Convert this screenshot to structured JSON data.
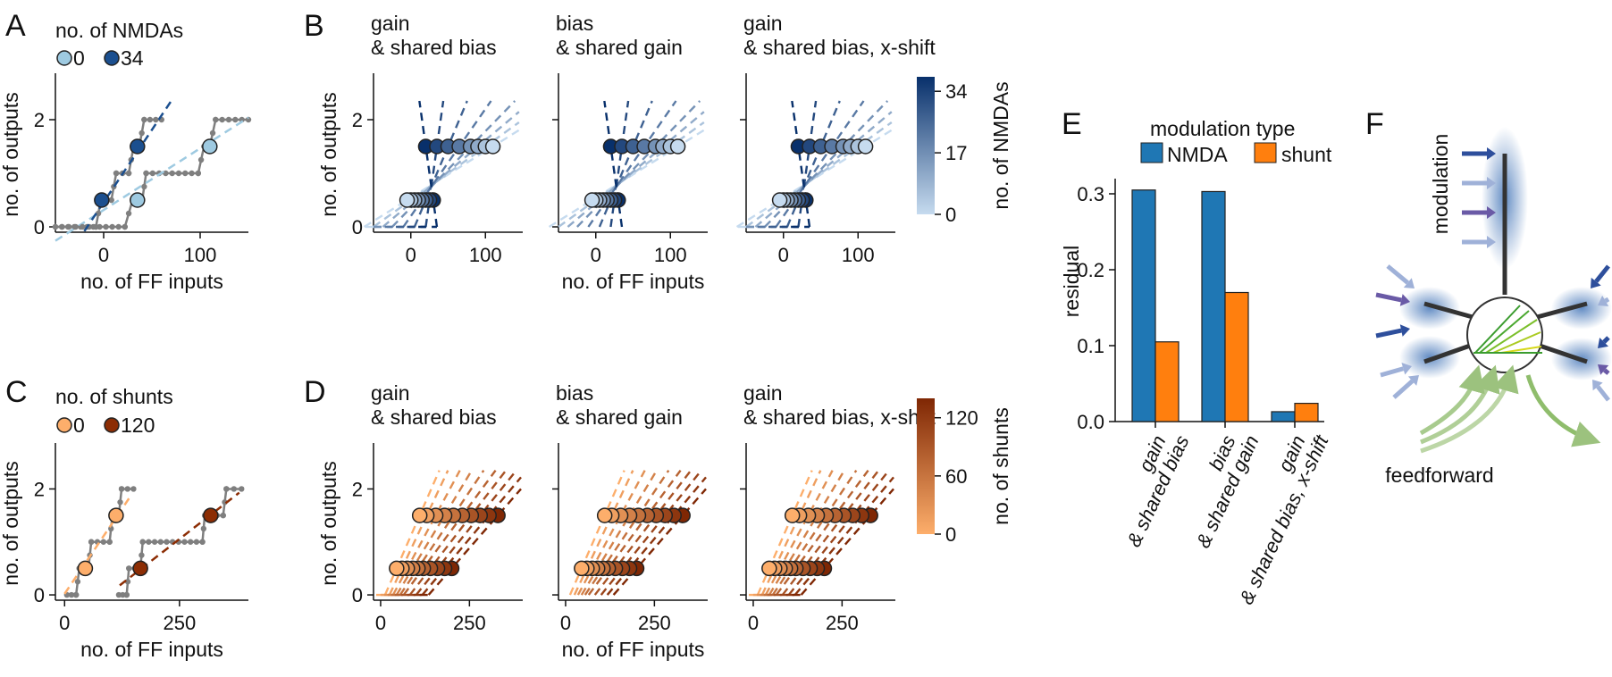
{
  "panel_letters": [
    "A",
    "B",
    "C",
    "D",
    "E",
    "F"
  ],
  "chart_data": [
    {
      "panel": "A",
      "type": "line",
      "legend_title": "no. of NMDAs",
      "legend_labels": [
        "0",
        "34"
      ],
      "colors": {
        "low": "#9ecae1",
        "high": "#1b4f8f",
        "steps": "#7f7f7f"
      },
      "xlabel": "no. of FF inputs",
      "ylabel": "no. of outputs",
      "xlim": [
        -50,
        150
      ],
      "ylim": [
        -0.1,
        2.8
      ],
      "xticks": [
        "0",
        "100"
      ],
      "xtick_values": [
        0,
        100
      ],
      "yticks": [
        "0",
        "2"
      ],
      "ytick_values": [
        0,
        2
      ],
      "series": [
        {
          "name": "0",
          "steps": [
            [
              -50,
              0
            ],
            [
              22,
              0
            ],
            [
              30,
              0.5
            ],
            [
              40,
              0.5
            ],
            [
              44,
              1
            ],
            [
              98,
              1
            ],
            [
              104,
              1.5
            ],
            [
              110,
              1.5
            ],
            [
              116,
              2
            ],
            [
              150,
              2
            ]
          ],
          "points": [
            [
              35,
              0.5
            ],
            [
              110,
              1.5
            ]
          ],
          "fit_x": [
            -50,
            150
          ],
          "fit_y": [
            -0.26,
            2.04
          ]
        },
        {
          "name": "34",
          "steps": [
            [
              -50,
              0
            ],
            [
              -8,
              0
            ],
            [
              -3,
              0.5
            ],
            [
              8,
              0.5
            ],
            [
              13,
              1
            ],
            [
              26,
              1
            ],
            [
              31,
              1.5
            ],
            [
              37,
              1.5
            ],
            [
              42,
              2
            ],
            [
              60,
              2
            ]
          ],
          "points": [
            [
              -2,
              0.5
            ],
            [
              35,
              1.5
            ]
          ],
          "fit_x": [
            -20,
            70
          ],
          "fit_y": [
            -0.08,
            2.35
          ]
        }
      ]
    },
    {
      "panel": "B",
      "type": "line",
      "subplot_titles": [
        [
          "gain",
          "& shared bias"
        ],
        [
          "bias",
          "& shared gain"
        ],
        [
          "gain",
          "& shared bias, x-shift"
        ]
      ],
      "xlabel": "no. of FF inputs",
      "ylabel": "no. of outputs",
      "xlim": [
        -50,
        150
      ],
      "ylim": [
        -0.1,
        2.8
      ],
      "xticks": [
        "0",
        "100"
      ],
      "xtick_values": [
        0,
        100
      ],
      "yticks": [
        "0",
        "2"
      ],
      "ytick_values": [
        0,
        2
      ],
      "colorbar": {
        "label": "no. of NMDAs",
        "ticks": [
          "0",
          "17",
          "34"
        ],
        "tick_values": [
          0,
          17,
          34
        ],
        "range": [
          0,
          38
        ],
        "colors": [
          "#c6dbef",
          "#08306b"
        ]
      },
      "nmda_levels": [
        0,
        5,
        10,
        15,
        20,
        25,
        30,
        34
      ],
      "points_low_x": [
        -5,
        0,
        5,
        10,
        15,
        20,
        25,
        30
      ],
      "points_high_x": [
        110,
        100,
        90,
        80,
        65,
        50,
        35,
        20
      ],
      "point_y": [
        0.5,
        1.5
      ]
    },
    {
      "panel": "C",
      "type": "line",
      "legend_title": "no. of shunts",
      "legend_labels": [
        "0",
        "120"
      ],
      "colors": {
        "low": "#fdae6b",
        "high": "#8c2d04",
        "steps": "#7f7f7f"
      },
      "xlabel": "no. of FF inputs",
      "ylabel": "no. of outputs",
      "xlim": [
        -20,
        400
      ],
      "ylim": [
        -0.1,
        2.8
      ],
      "xticks": [
        "0",
        "250"
      ],
      "xtick_values": [
        0,
        250
      ],
      "yticks": [
        "0",
        "2"
      ],
      "ytick_values": [
        0,
        2
      ],
      "series": [
        {
          "name": "0",
          "steps": [
            [
              5,
              0
            ],
            [
              25,
              0
            ],
            [
              32,
              0.5
            ],
            [
              52,
              0.5
            ],
            [
              58,
              1
            ],
            [
              98,
              1
            ],
            [
              104,
              1.5
            ],
            [
              118,
              1.5
            ],
            [
              124,
              2
            ],
            [
              150,
              2
            ]
          ],
          "points": [
            [
              45,
              0.5
            ],
            [
              112,
              1.5
            ]
          ],
          "fit_x": [
            0,
            140
          ],
          "fit_y": [
            0.02,
            1.82
          ]
        },
        {
          "name": "120",
          "steps": [
            [
              118,
              0
            ],
            [
              135,
              0
            ],
            [
              140,
              0.5
            ],
            [
              165,
              0.5
            ],
            [
              170,
              1
            ],
            [
              300,
              1
            ],
            [
              305,
              1.5
            ],
            [
              345,
              1.5
            ],
            [
              352,
              2
            ],
            [
              385,
              2
            ]
          ],
          "points": [
            [
              165,
              0.5
            ],
            [
              318,
              1.5
            ]
          ],
          "fit_x": [
            120,
            380
          ],
          "fit_y": [
            0.18,
            1.93
          ]
        }
      ]
    },
    {
      "panel": "D",
      "type": "line",
      "subplot_titles": [
        [
          "gain",
          "& shared bias"
        ],
        [
          "bias",
          "& shared gain"
        ],
        [
          "gain",
          "& shared bias, x-shift"
        ]
      ],
      "xlabel": "no. of FF inputs",
      "ylabel": "no. of outputs",
      "xlim": [
        -20,
        400
      ],
      "ylim": [
        -0.1,
        2.8
      ],
      "xticks": [
        "0",
        "250"
      ],
      "xtick_values": [
        0,
        250
      ],
      "yticks": [
        "0",
        "2"
      ],
      "ytick_values": [
        0,
        2
      ],
      "colorbar": {
        "label": "no. of shunts",
        "ticks": [
          "0",
          "60",
          "120"
        ],
        "tick_values": [
          0,
          60,
          120
        ],
        "range": [
          0,
          140
        ],
        "colors": [
          "#fdae6b",
          "#7f2704"
        ]
      },
      "shunt_levels": [
        0,
        15,
        30,
        45,
        60,
        75,
        90,
        105,
        120,
        135
      ],
      "points_low_x": [
        45,
        60,
        75,
        90,
        105,
        120,
        140,
        160,
        180,
        200
      ],
      "points_high_x": [
        110,
        130,
        155,
        180,
        205,
        230,
        255,
        280,
        305,
        330
      ],
      "point_y": [
        0.5,
        1.5
      ]
    },
    {
      "panel": "E",
      "type": "bar",
      "legend_title": "modulation type",
      "series": [
        {
          "name": "NMDA",
          "color": "#1f77b4",
          "values": [
            0.305,
            0.303,
            0.013
          ]
        },
        {
          "name": "shunt",
          "color": "#ff7f0e",
          "values": [
            0.105,
            0.17,
            0.024
          ]
        }
      ],
      "categories": [
        [
          "gain",
          "& shared bias"
        ],
        [
          "bias",
          "& shared gain"
        ],
        [
          "gain",
          "& shared bias, x-shift"
        ]
      ],
      "ylabel": "residual",
      "ylim": [
        0,
        0.32
      ],
      "yticks": [
        "0.0",
        "0.1",
        "0.2",
        "0.3"
      ],
      "ytick_values": [
        0.0,
        0.1,
        0.2,
        0.3
      ]
    }
  ],
  "schematic": {
    "labels": {
      "top": "modulation",
      "bottom": "feedforward"
    },
    "colors": {
      "dendrite": "#333333",
      "blur": "#2f66b0",
      "arrow_dark": "#2e4f9c",
      "arrow_light": "#9fb1d8",
      "arrow_purple": "#6a5aa6",
      "feedforward": "#9cc27e",
      "synapse_green": "#3b9c2f",
      "synapse_yellow": "#d6d81a"
    },
    "icon": "neuron-schematic-icon"
  }
}
